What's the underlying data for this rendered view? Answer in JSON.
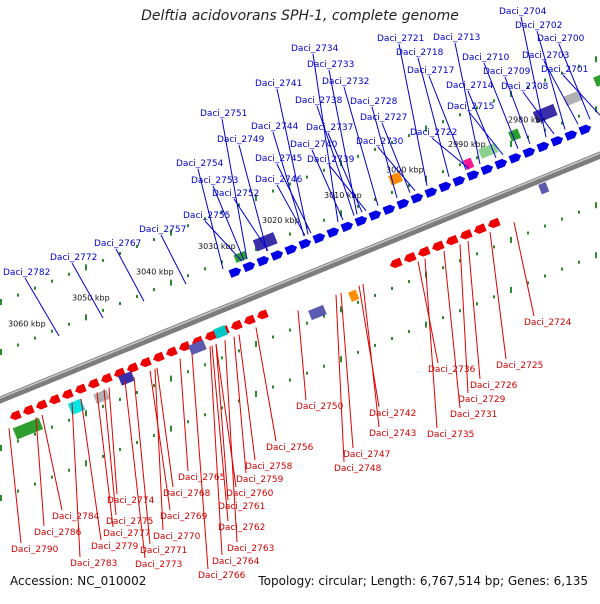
{
  "title": "Delftia acidovorans SPH-1, complete genome",
  "footer": {
    "accession": "Accession: NC_010002",
    "stats": "Topology: circular; Length: 6,767,514 bp; Genes: 6,135"
  },
  "scale_ticks": [
    "3060 kbp",
    "3050 kbp",
    "3040 kbp",
    "3030 kbp",
    "3020 kbp",
    "3010 kbp",
    "3000 kbp",
    "2990 kbp",
    "2980 kbp"
  ],
  "labels_plus": [
    "Daci_2704",
    "Daci_2702",
    "Daci_2700",
    "Daci_2703",
    "Daci_2701",
    "Daci_2713",
    "Daci_2721",
    "Daci_2718",
    "Daci_2710",
    "Daci_2717",
    "Daci_2709",
    "Daci_2714",
    "Daci_2708",
    "Daci_2715",
    "Daci_2722",
    "Daci_2734",
    "Daci_2733",
    "Daci_2741",
    "Daci_2732",
    "Daci_2738",
    "Daci_2728",
    "Daci_2727",
    "Daci_2744",
    "Daci_2737",
    "Daci_2730",
    "Daci_2751",
    "Daci_2749",
    "Daci_2740",
    "Daci_2745",
    "Daci_2739",
    "Daci_2754",
    "Daci_2746",
    "Daci_2753",
    "Daci_2752",
    "Daci_2755",
    "Daci_2757",
    "Daci_2767",
    "Daci_2772",
    "Daci_2782"
  ],
  "labels_minus": [
    "Daci_2724",
    "Daci_2725",
    "Daci_2726",
    "Daci_2729",
    "Daci_2736",
    "Daci_2731",
    "Daci_2735",
    "Daci_2750",
    "Daci_2742",
    "Daci_2743",
    "Daci_2747",
    "Daci_2748",
    "Daci_2756",
    "Daci_2758",
    "Daci_2759",
    "Daci_2765",
    "Daci_2760",
    "Daci_2768",
    "Daci_2761",
    "Daci_2774",
    "Daci_2769",
    "Daci_2762",
    "Daci_2775",
    "Daci_2770",
    "Daci_2784",
    "Daci_2777",
    "Daci_2763",
    "Daci_2786",
    "Daci_2779",
    "Daci_2771",
    "Daci_2764",
    "Daci_2783",
    "Daci_2773",
    "Daci_2766",
    "Daci_2790"
  ]
}
